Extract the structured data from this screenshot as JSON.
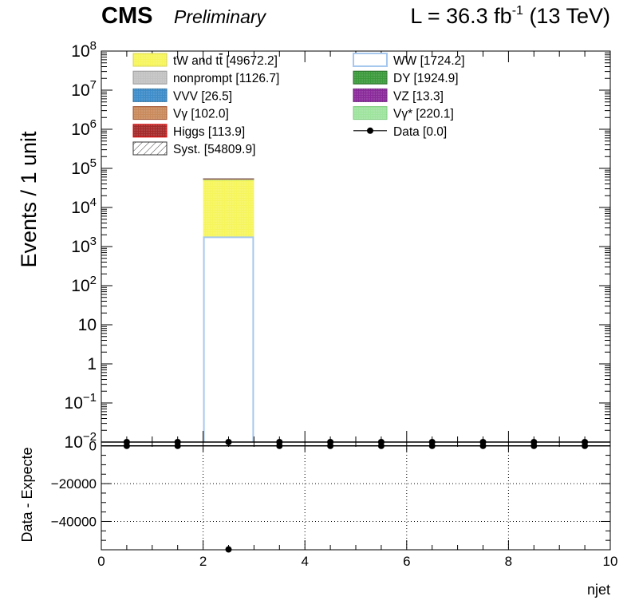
{
  "header": {
    "cms": "CMS",
    "preliminary": "Preliminary",
    "lumi_prefix": "L = 36.3 fb",
    "lumi_sup": "-1",
    "lumi_suffix": " (13 TeV)"
  },
  "chart_data": [
    {
      "type": "bar",
      "panel": "main",
      "yscale": "log",
      "ylabel": "Events / 1 unit",
      "xlim": [
        0,
        10
      ],
      "ylim": [
        0.01,
        100000000
      ],
      "y_ticks": [
        {
          "value": 100000000,
          "base": "10",
          "exp": "8"
        },
        {
          "value": 10000000,
          "base": "10",
          "exp": "7"
        },
        {
          "value": 1000000,
          "base": "10",
          "exp": "6"
        },
        {
          "value": 100000,
          "base": "10",
          "exp": "5"
        },
        {
          "value": 10000,
          "base": "10",
          "exp": "4"
        },
        {
          "value": 1000,
          "base": "10",
          "exp": "3"
        },
        {
          "value": 100,
          "base": "10",
          "exp": "2"
        },
        {
          "value": 10,
          "base": "10",
          "exp": ""
        },
        {
          "value": 1,
          "base": "1",
          "exp": ""
        },
        {
          "value": 0.1,
          "base": "10",
          "exp": "−1"
        },
        {
          "value": 0.01,
          "base": "10",
          "exp": "−2"
        }
      ],
      "stack": [
        {
          "name": "WW",
          "x_range": [
            2,
            3
          ],
          "value": 1724.2,
          "fill": "#ffffff",
          "edge": "#a6c8ee"
        },
        {
          "name": "tW and tt̄",
          "x_range": [
            2,
            3
          ],
          "value": 49672.2,
          "fill": "#f6f55c",
          "edge": "#f0ee60"
        },
        {
          "name": "Vγ*",
          "x_range": [
            2,
            3
          ],
          "value": 220.1,
          "fill": "#9ee39e",
          "edge": "#7ccc7c"
        },
        {
          "name": "DY",
          "x_range": [
            2,
            3
          ],
          "value": 1924.9,
          "fill": "#3b9a3b",
          "edge": "#2c6e2c"
        },
        {
          "name": "Higgs",
          "x_range": [
            2,
            3
          ],
          "value": 113.9,
          "fill": "#a52a2a",
          "edge": "#e00000"
        },
        {
          "name": "nonprompt",
          "x_range": [
            2,
            3
          ],
          "value": 1126.7,
          "fill": "#bdbdbd",
          "edge": "#9a9a9a"
        }
      ],
      "data_points": {
        "x": [
          0.5,
          1.5,
          2.5,
          3.5,
          4.5,
          5.5,
          6.5,
          7.5,
          8.5,
          9.5
        ],
        "y": [
          0,
          0,
          0,
          0,
          0,
          0,
          0,
          0,
          0,
          0
        ]
      },
      "legend": {
        "placement": "top",
        "left": [
          {
            "label": "tW and t",
            "bar": "t",
            "rest": " [49672.2]",
            "fill": "#f6f55c",
            "edge": "#d8d44a",
            "pattern": "dots"
          },
          {
            "label": "nonprompt [1126.7]",
            "bar": "",
            "rest": "",
            "fill": "#c2c2c2",
            "edge": "#9a9a9a",
            "pattern": "dots"
          },
          {
            "label": "VVV [26.5]",
            "bar": "",
            "rest": "",
            "fill": "#3d8cc9",
            "edge": "#2a6e9e",
            "pattern": "dots"
          },
          {
            "label": "Vγ [102.0]",
            "bar": "",
            "rest": "",
            "fill": "#c98a5c",
            "edge": "#a0522d",
            "pattern": "dots"
          },
          {
            "label": "Higgs [113.9]",
            "bar": "",
            "rest": "",
            "fill": "#a52a2a",
            "edge": "#e00000",
            "pattern": "dots"
          },
          {
            "label": "Syst. [54809.9]",
            "bar": "",
            "rest": "",
            "fill": "#ffffff",
            "edge": "#333333",
            "pattern": "hatch"
          }
        ],
        "right": [
          {
            "label": "WW [1724.2]",
            "fill": "#ffffff",
            "edge": "#a6c8ee",
            "pattern": "none"
          },
          {
            "label": "DY [1924.9]",
            "fill": "#3b9a3b",
            "edge": "#2c6e2c",
            "pattern": "dots"
          },
          {
            "label": "VZ [13.3]",
            "fill": "#8a2a9a",
            "edge": "#6a1a7a",
            "pattern": "dots"
          },
          {
            "label": "Vγ* [220.1]",
            "fill": "#9ee39e",
            "edge": "#7ccc7c",
            "pattern": "dots"
          },
          {
            "label": "Data [0.0]",
            "fill": "",
            "edge": "#000000",
            "pattern": "marker"
          }
        ]
      },
      "grid": false
    },
    {
      "type": "scatter",
      "panel": "ratio",
      "ylabel": "Data - Expecte",
      "xlabel": "njet",
      "xlim": [
        0,
        10
      ],
      "ylim": [
        -55000,
        2000
      ],
      "y_ticks": [
        0,
        -20000,
        -40000
      ],
      "y_tick_labels": [
        "0",
        "−20000",
        "−40000"
      ],
      "x_ticks": [
        0,
        2,
        4,
        6,
        8,
        10
      ],
      "x_tick_labels": [
        "0",
        "2",
        "4",
        "6",
        "8",
        "10"
      ],
      "x": [
        0.5,
        1.5,
        2.5,
        3.5,
        4.5,
        5.5,
        6.5,
        7.5,
        8.5,
        9.5
      ],
      "y": [
        0,
        0,
        -54810,
        0,
        0,
        0,
        0,
        0,
        0,
        0
      ],
      "grid": true
    }
  ]
}
